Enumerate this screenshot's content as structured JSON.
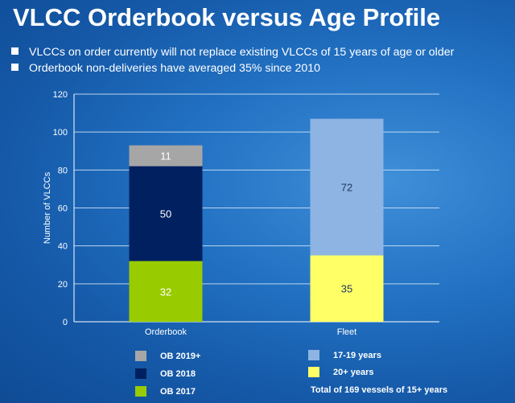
{
  "title": "VLCC Orderbook versus Age Profile",
  "bullets": [
    "VLCCs on order currently will not replace existing VLCCs of 15 years of age or older",
    "Orderbook non-deliveries have averaged 35% since 2010"
  ],
  "chart_data": {
    "type": "bar",
    "stacked": true,
    "categories": [
      "Orderbook",
      "Fleet"
    ],
    "ylabel": "Number of VLCCs",
    "ylim": [
      0,
      120
    ],
    "yticks": [
      0,
      20,
      40,
      60,
      80,
      100,
      120
    ],
    "grid": true,
    "stacks": [
      {
        "category": "Orderbook",
        "segments": [
          {
            "name": "OB 2017",
            "value": 32,
            "color": "#99cc00",
            "label_color": "#ffffff"
          },
          {
            "name": "OB 2018",
            "value": 50,
            "color": "#002060",
            "label_color": "#ffffff"
          },
          {
            "name": "OB 2019+",
            "value": 11,
            "color": "#a6a6a6",
            "label_color": "#ffffff"
          }
        ]
      },
      {
        "category": "Fleet",
        "segments": [
          {
            "name": "20+ years",
            "value": 35,
            "color": "#ffff66",
            "label_color": "#1f3864"
          },
          {
            "name": "17-19 years",
            "value": 72,
            "color": "#8eb4e3",
            "label_color": "#1f3864"
          }
        ]
      }
    ],
    "legend_left": [
      {
        "label": "OB 2019+",
        "color": "#a6a6a6"
      },
      {
        "label": "OB 2018",
        "color": "#002060"
      },
      {
        "label": "OB 2017",
        "color": "#99cc00"
      }
    ],
    "legend_right": [
      {
        "label": "17-19 years",
        "color": "#8eb4e3"
      },
      {
        "label": "20+ years",
        "color": "#ffff66"
      }
    ],
    "note": "Total of 169 vessels of 15+ years"
  }
}
